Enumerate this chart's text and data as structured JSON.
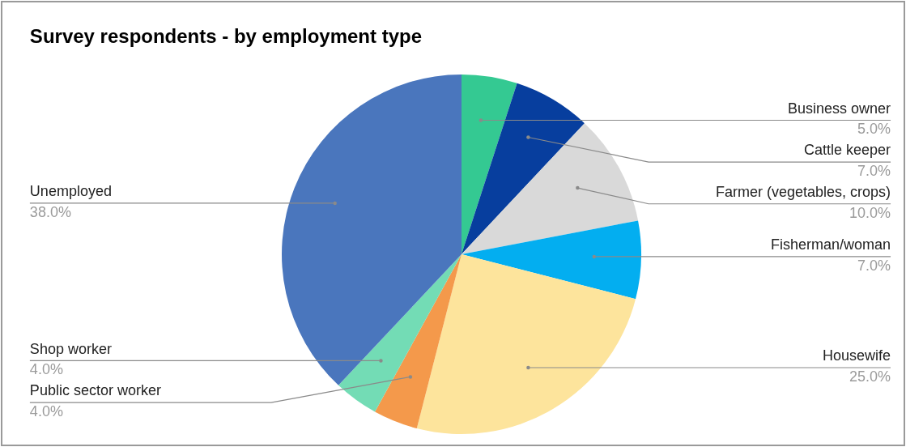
{
  "chart_data": {
    "type": "pie",
    "title": "Survey respondents - by employment type",
    "categories": [
      "Business owner",
      "Cattle keeper",
      "Farmer (vegetables, crops)",
      "Fisherman/woman",
      "Housewife",
      "Public sector worker",
      "Shop worker",
      "Unemployed"
    ],
    "values": [
      5,
      7,
      10,
      7,
      25,
      4,
      4,
      38
    ],
    "value_labels": [
      "5.0%",
      "7.0%",
      "10.0%",
      "7.0%",
      "25.0%",
      "4.0%",
      "4.0%",
      "38.0%"
    ],
    "colors": [
      "#34c992",
      "#073e9e",
      "#d9d9d9",
      "#03aef0",
      "#fde49c",
      "#f4994b",
      "#73dcb5",
      "#4a76bd"
    ]
  }
}
